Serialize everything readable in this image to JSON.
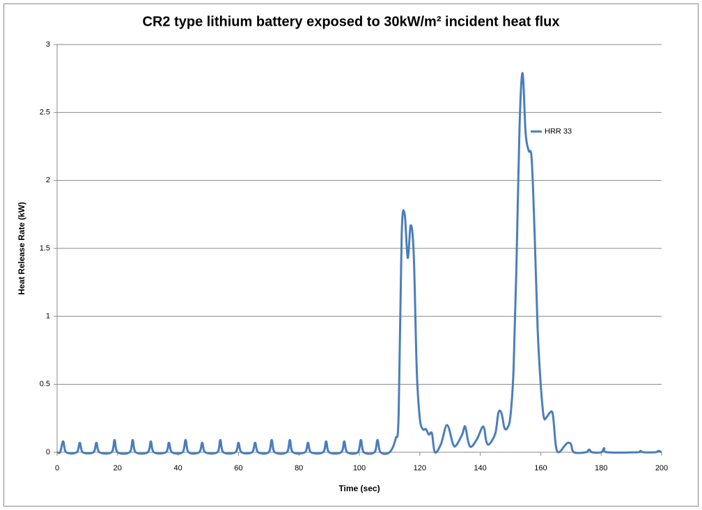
{
  "chart_data": {
    "type": "line",
    "title": "CR2 type lithium battery exposed to 30kW/m² incident heat flux",
    "xlabel": "Time (sec)",
    "ylabel": "Heat Release Rate (kW)",
    "x": [
      0,
      1,
      2,
      3,
      6.5,
      7.5,
      8.5,
      12,
      13,
      14,
      18,
      19,
      20,
      24,
      25,
      26,
      30,
      31,
      32,
      36,
      37,
      38,
      41.5,
      42.5,
      43.5,
      47,
      48,
      49,
      53,
      54,
      55,
      59,
      60,
      61,
      64.5,
      65.5,
      66.5,
      70,
      71,
      72,
      76,
      77,
      78,
      82,
      83,
      84,
      88,
      89,
      90,
      94,
      95,
      96,
      99.5,
      100.5,
      101.5,
      105,
      106,
      107,
      110,
      112,
      113,
      114,
      115,
      116,
      117,
      118,
      119,
      120,
      121,
      122,
      123,
      124,
      125,
      127,
      129,
      131,
      132,
      134,
      135,
      136,
      137,
      139,
      141,
      142,
      143,
      145,
      146,
      147,
      148,
      149,
      150,
      151,
      152,
      153,
      154,
      155,
      156,
      157,
      158,
      159,
      160,
      161,
      162,
      163,
      164,
      165,
      166,
      168,
      169,
      170,
      171,
      175,
      176,
      177,
      180,
      181,
      182,
      192,
      193,
      194,
      198,
      199,
      200
    ],
    "series": [
      {
        "name": "HRR 33",
        "color": "#4a7ebb",
        "values": [
          0,
          0,
          0.08,
          0,
          0,
          0.07,
          0,
          0,
          0.07,
          0,
          0,
          0.09,
          0,
          0,
          0.09,
          0,
          0,
          0.08,
          0,
          0,
          0.07,
          0,
          0,
          0.09,
          0,
          0,
          0.07,
          0,
          0,
          0.09,
          0,
          0,
          0.07,
          0,
          0,
          0.07,
          0,
          0,
          0.09,
          0,
          0,
          0.09,
          0,
          0,
          0.07,
          0,
          0,
          0.08,
          0,
          0,
          0.08,
          0,
          0,
          0.09,
          0,
          0,
          0.09,
          0,
          0,
          0.1,
          0.28,
          1.6,
          1.75,
          1.43,
          1.67,
          1.45,
          0.6,
          0.25,
          0.17,
          0.17,
          0.13,
          0.14,
          0,
          0.06,
          0.2,
          0.06,
          0.05,
          0.13,
          0.19,
          0.08,
          0.04,
          0.1,
          0.19,
          0.08,
          0.06,
          0.14,
          0.29,
          0.29,
          0.18,
          0.18,
          0.27,
          0.6,
          1.4,
          2.4,
          2.79,
          2.35,
          2.22,
          2.16,
          1.6,
          0.9,
          0.5,
          0.26,
          0.26,
          0.29,
          0.28,
          0.05,
          0,
          0.05,
          0.07,
          0.06,
          0,
          0,
          0.02,
          0,
          0,
          0.03,
          0,
          0,
          0.01,
          0,
          0,
          0.01,
          0
        ]
      }
    ],
    "xlim": [
      0,
      200
    ],
    "xticks": [
      0,
      20,
      40,
      60,
      80,
      100,
      120,
      140,
      160,
      180,
      200
    ],
    "ylim": [
      0,
      3
    ],
    "yticks": [
      0,
      0.5,
      1,
      1.5,
      2,
      2.5,
      3
    ],
    "grid": true,
    "legend": "right"
  }
}
